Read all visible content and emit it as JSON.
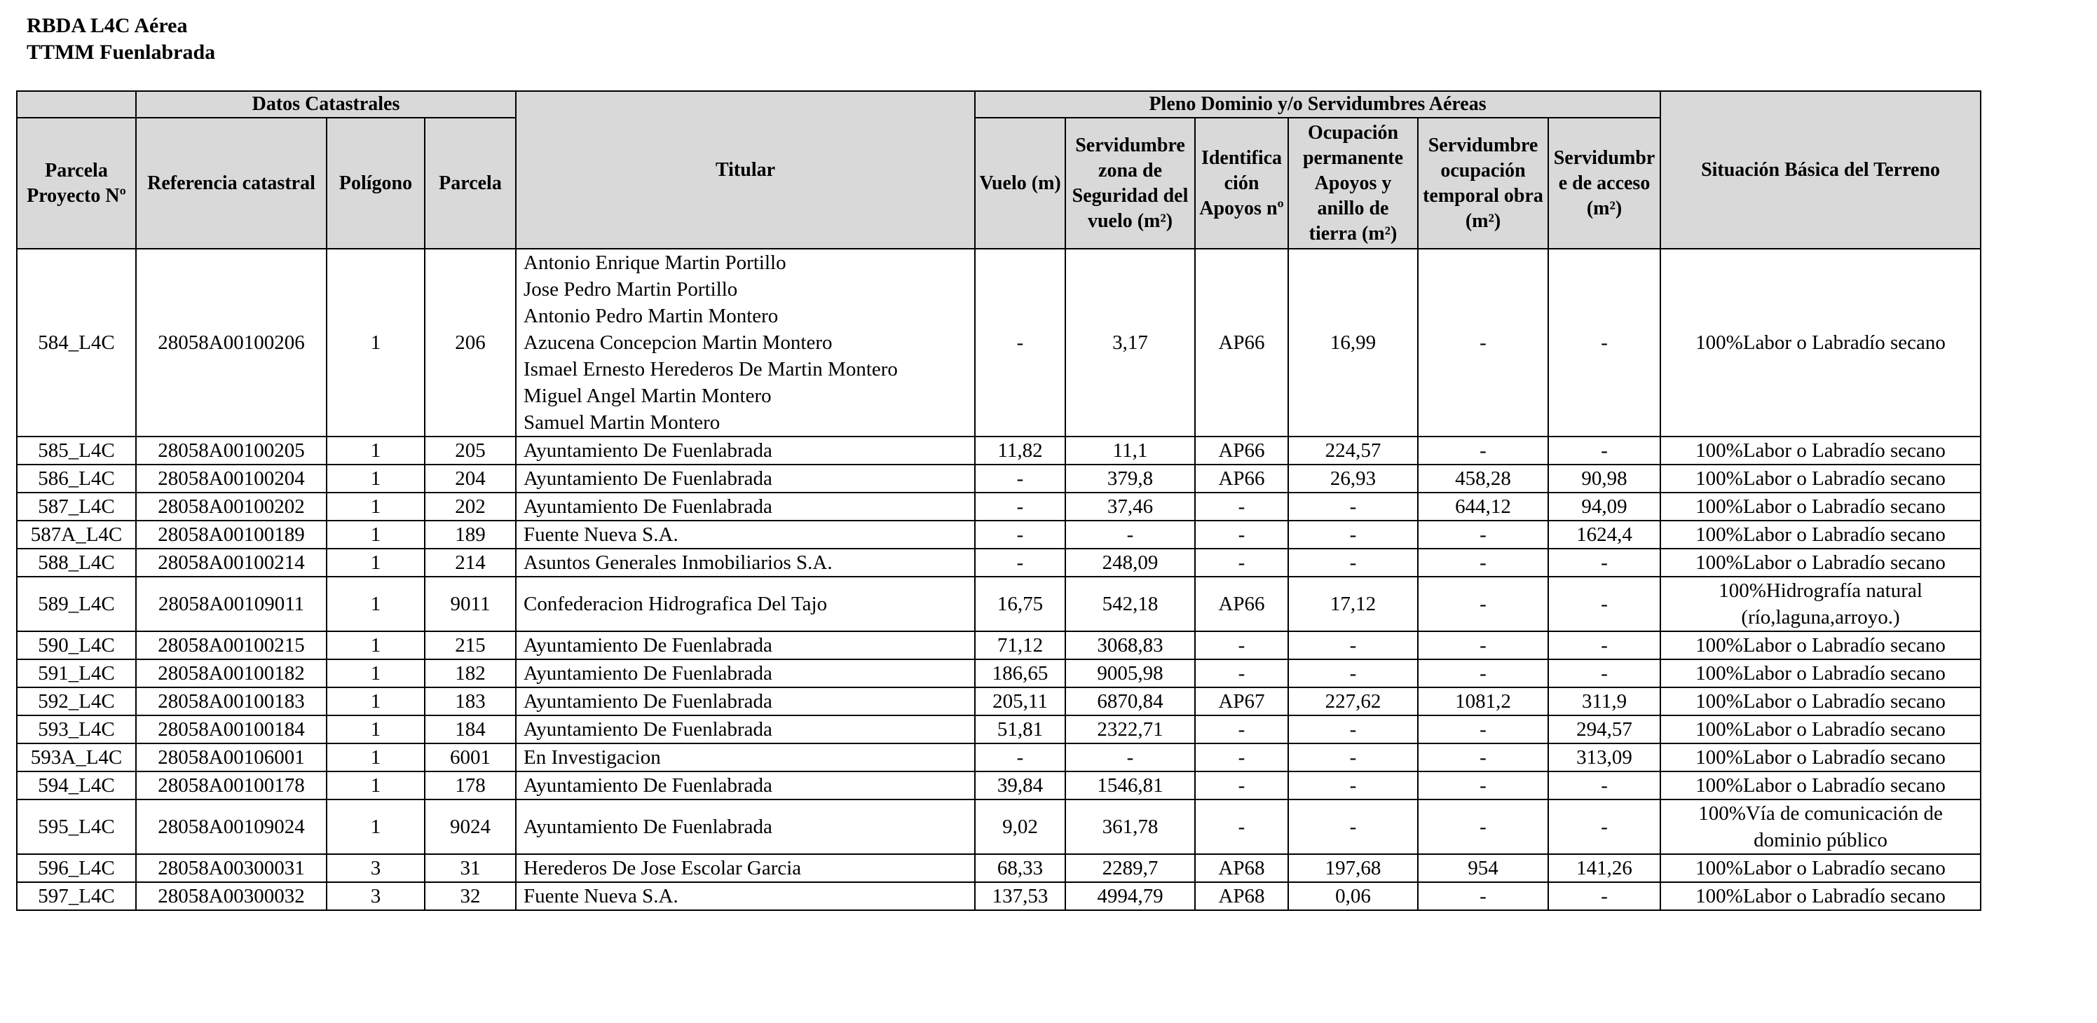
{
  "header": {
    "title": [
      "RBDA L4C Aérea",
      "TTMM Fuenlabrada"
    ]
  },
  "table": {
    "group_headers": [
      "Datos Catastrales",
      "Pleno Dominio y/o Servidumbres Aéreas"
    ],
    "columns": [
      "Parcela Proyecto Nº",
      "Referencia catastral",
      "Polígono",
      "Parcela",
      "Titular",
      "Vuelo (m)",
      "Servidumbre zona de Seguridad del vuelo (m²)",
      "Identificación Apoyos nº",
      "Ocupación permanente Apoyos y anillo de tierra (m²)",
      "Servidumbre ocupación temporal obra (m²)",
      "Servidumbre de acceso (m²)",
      "Situación Básica del Terreno"
    ],
    "rows": [
      [
        "584_L4C",
        "28058A00100206",
        "1",
        "206",
        [
          "Antonio Enrique Martin Portillo",
          "Jose Pedro Martin Portillo",
          "Antonio Pedro Martin Montero",
          "Azucena Concepcion Martin Montero",
          "Ismael Ernesto Herederos De Martin Montero",
          "Miguel Angel Martin Montero",
          "Samuel Martin Montero"
        ],
        "-",
        "3,17",
        "AP66",
        "16,99",
        "-",
        "-",
        "100%Labor o Labradío secano"
      ],
      [
        "585_L4C",
        "28058A00100205",
        "1",
        "205",
        "Ayuntamiento De Fuenlabrada",
        "11,82",
        "11,1",
        "AP66",
        "224,57",
        "-",
        "-",
        "100%Labor o Labradío secano"
      ],
      [
        "586_L4C",
        "28058A00100204",
        "1",
        "204",
        "Ayuntamiento De Fuenlabrada",
        "-",
        "379,8",
        "AP66",
        "26,93",
        "458,28",
        "90,98",
        "100%Labor o Labradío secano"
      ],
      [
        "587_L4C",
        "28058A00100202",
        "1",
        "202",
        "Ayuntamiento De Fuenlabrada",
        "-",
        "37,46",
        "-",
        "-",
        "644,12",
        "94,09",
        "100%Labor o Labradío secano"
      ],
      [
        "587A_L4C",
        "28058A00100189",
        "1",
        "189",
        "Fuente Nueva S.A.",
        "-",
        "-",
        "-",
        "-",
        "-",
        "1624,4",
        "100%Labor o Labradío secano"
      ],
      [
        "588_L4C",
        "28058A00100214",
        "1",
        "214",
        "Asuntos Generales Inmobiliarios S.A.",
        "-",
        "248,09",
        "-",
        "-",
        "-",
        "-",
        "100%Labor o Labradío secano"
      ],
      [
        "589_L4C",
        "28058A00109011",
        "1",
        "9011",
        "Confederacion Hidrografica Del Tajo",
        "16,75",
        "542,18",
        "AP66",
        "17,12",
        "-",
        "-",
        "100%Hidrografía natural (río,laguna,arroyo.)"
      ],
      [
        "590_L4C",
        "28058A00100215",
        "1",
        "215",
        "Ayuntamiento De Fuenlabrada",
        "71,12",
        "3068,83",
        "-",
        "-",
        "-",
        "-",
        "100%Labor o Labradío secano"
      ],
      [
        "591_L4C",
        "28058A00100182",
        "1",
        "182",
        "Ayuntamiento De Fuenlabrada",
        "186,65",
        "9005,98",
        "-",
        "-",
        "-",
        "-",
        "100%Labor o Labradío secano"
      ],
      [
        "592_L4C",
        "28058A00100183",
        "1",
        "183",
        "Ayuntamiento De Fuenlabrada",
        "205,11",
        "6870,84",
        "AP67",
        "227,62",
        "1081,2",
        "311,9",
        "100%Labor o Labradío secano"
      ],
      [
        "593_L4C",
        "28058A00100184",
        "1",
        "184",
        "Ayuntamiento De Fuenlabrada",
        "51,81",
        "2322,71",
        "-",
        "-",
        "-",
        "294,57",
        "100%Labor o Labradío secano"
      ],
      [
        "593A_L4C",
        "28058A00106001",
        "1",
        "6001",
        "En Investigacion",
        "-",
        "-",
        "-",
        "-",
        "-",
        "313,09",
        "100%Labor o Labradío secano"
      ],
      [
        "594_L4C",
        "28058A00100178",
        "1",
        "178",
        "Ayuntamiento De Fuenlabrada",
        "39,84",
        "1546,81",
        "-",
        "-",
        "-",
        "-",
        "100%Labor o Labradío secano"
      ],
      [
        "595_L4C",
        "28058A00109024",
        "1",
        "9024",
        "Ayuntamiento De Fuenlabrada",
        "9,02",
        "361,78",
        "-",
        "-",
        "-",
        "-",
        "100%Vía de comunicación de dominio público"
      ],
      [
        "596_L4C",
        "28058A00300031",
        "3",
        "31",
        "Herederos De Jose Escolar Garcia",
        "68,33",
        "2289,7",
        "AP68",
        "197,68",
        "954",
        "141,26",
        "100%Labor o Labradío secano"
      ],
      [
        "597_L4C",
        "28058A00300032",
        "3",
        "32",
        "Fuente Nueva S.A.",
        "137,53",
        "4994,79",
        "AP68",
        "0,06",
        "-",
        "-",
        "100%Labor o Labradío secano"
      ]
    ]
  }
}
